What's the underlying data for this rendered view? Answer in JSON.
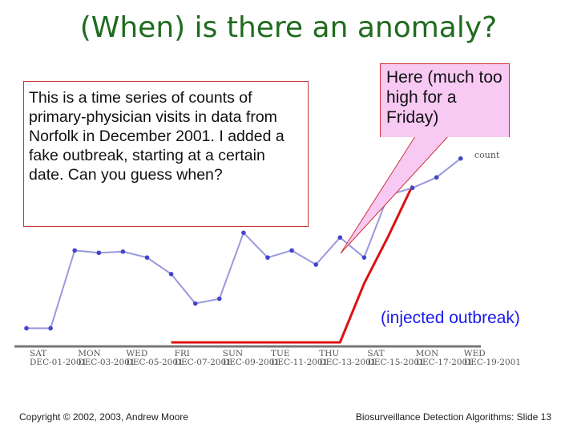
{
  "slide": {
    "title": "(When) is there an anomaly?",
    "note": "This is a time series of counts of primary-physician visits in data from Norfolk in December 2001. I added a fake outbreak, starting at a certain date. Can you guess when?",
    "callout": "Here (much too high for a Friday)",
    "injected_label": "(injected outbreak)",
    "footer_left": "Copyright © 2002, 2003, Andrew Moore",
    "footer_right": "Biosurveillance Detection Algorithms: Slide 13"
  },
  "colors": {
    "title": "#1f6b1f",
    "series_line": "#9999dd",
    "series_marker": "#4444cc",
    "outbreak_line": "#dd1111",
    "callout_fill": "#f7c9f3",
    "callout_border": "#cc3333",
    "injected_text": "#1a1aee"
  },
  "chart_data": {
    "type": "line",
    "x": [
      "Dec-01-2001",
      "Dec-02-2001",
      "Dec-03-2001",
      "Dec-04-2001",
      "Dec-05-2001",
      "Dec-06-2001",
      "Dec-07-2001",
      "Dec-08-2001",
      "Dec-09-2001",
      "Dec-10-2001",
      "Dec-11-2001",
      "Dec-12-2001",
      "Dec-13-2001",
      "Dec-14-2001",
      "Dec-15-2001",
      "Dec-16-2001",
      "Dec-17-2001",
      "Dec-18-2001",
      "Dec-19-2001"
    ],
    "tick_labels": [
      {
        "day": "SAT",
        "date": "DEC-01-2001"
      },
      {
        "day": "MON",
        "date": "DEC-03-2001"
      },
      {
        "day": "WED",
        "date": "DEC-05-2001"
      },
      {
        "day": "FRI",
        "date": "DEC-07-2001"
      },
      {
        "day": "SUN",
        "date": "DEC-09-2001"
      },
      {
        "day": "TUE",
        "date": "DEC-11-2001"
      },
      {
        "day": "THU",
        "date": "DEC-13-2001"
      },
      {
        "day": "SAT",
        "date": "DEC-15-2001"
      },
      {
        "day": "MON",
        "date": "DEC-17-2001"
      },
      {
        "day": "WED",
        "date": "DEC-19-2001"
      }
    ],
    "series": [
      {
        "name": "count",
        "values": [
          12,
          12,
          78,
          76,
          77,
          72,
          58,
          33,
          37,
          93,
          72,
          78,
          66,
          89,
          72,
          125,
          131,
          140,
          156
        ]
      },
      {
        "values": [
          null,
          null,
          null,
          null,
          null,
          null,
          0,
          0,
          0,
          0,
          0,
          0,
          0,
          0,
          50,
          90,
          133,
          null,
          null
        ]
      }
    ],
    "ylim": [
      0,
      160
    ],
    "grid": false,
    "legend": "right"
  }
}
